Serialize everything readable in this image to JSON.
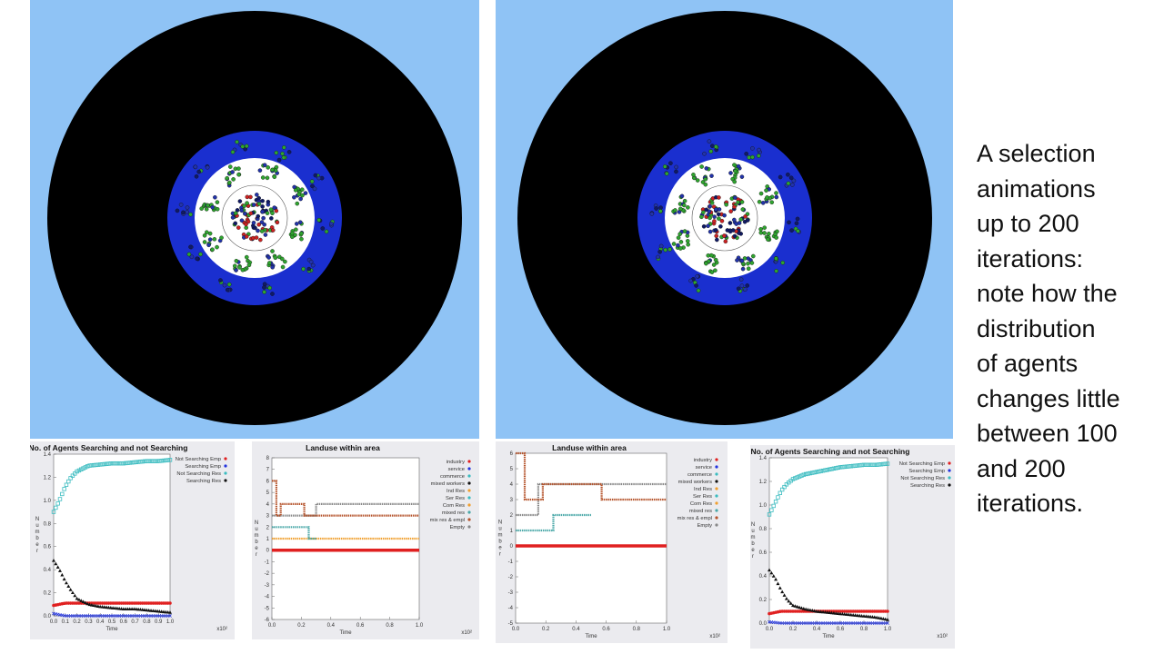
{
  "simulations": [
    {
      "name": "simulation-view-left"
    },
    {
      "name": "simulation-view-right"
    }
  ],
  "colors": {
    "sky": "#8fc3f5",
    "outer_disc": "#000000",
    "ring": "#1a2fcf",
    "core": "#ffffff",
    "agent_green": "#2fa52f",
    "agent_red": "#cc2222",
    "agent_blue": "#2233aa",
    "agent_dark_blue": "#101a66"
  },
  "caption": {
    "lines": [
      "A selection",
      "animations",
      "up to 200",
      "iterations:",
      "note how the",
      "distribution",
      "of agents",
      "changes little",
      "between 100",
      "and 200",
      "iterations."
    ]
  },
  "panels": {
    "agents_left": {
      "title": "No. of Agents Searching and not Searching",
      "xlabel": "Time",
      "ylabel": "Number",
      "x_scale": "x10²",
      "ticks_y": [
        "0.0",
        "0.2",
        "0.4",
        "0.6",
        "0.8",
        "1.0",
        "1.2",
        "1.4"
      ],
      "ticks_x": [
        "0.0",
        "0.1",
        "0.2",
        "0.3",
        "0.4",
        "0.5",
        "0.6",
        "0.7",
        "0.8",
        "0.9",
        "1.0"
      ],
      "legend": [
        "Not Searching Emp",
        "Searching Emp",
        "Not Searching Res",
        "Searching Res"
      ]
    },
    "landuse_left": {
      "title": "Landuse within area",
      "xlabel": "Time",
      "ylabel": "Number",
      "x_scale": "x10²",
      "ticks_y": [
        "-6",
        "-5",
        "-4",
        "-3",
        "-2",
        "-1",
        "0",
        "1",
        "2",
        "3",
        "4",
        "5",
        "6",
        "7",
        "8"
      ],
      "ticks_x": [
        "0.0",
        "0.2",
        "0.4",
        "0.6",
        "0.8",
        "1.0"
      ],
      "legend": [
        "industry",
        "service",
        "commerce",
        "mixed workers",
        "Ind Res",
        "Ser Res",
        "Com Res",
        "mixed res",
        "mix res & empl",
        "Empty"
      ]
    },
    "landuse_right": {
      "title": "Landuse within area",
      "xlabel": "Time",
      "ylabel": "Number",
      "x_scale": "x10²",
      "ticks_y": [
        "-5",
        "-4",
        "-3",
        "-2",
        "-1",
        "0",
        "1",
        "2",
        "3",
        "4",
        "5",
        "6"
      ],
      "ticks_x": [
        "0.0",
        "0.2",
        "0.4",
        "0.6",
        "0.8",
        "1.0"
      ],
      "legend": [
        "industry",
        "service",
        "commerce",
        "mixed workers",
        "Ind Res",
        "Ser Res",
        "Com Res",
        "mixed res",
        "mix res & empl",
        "Empty"
      ]
    },
    "agents_right": {
      "title": "No. of Agents Searching and not Searching",
      "xlabel": "Time",
      "ylabel": "Number",
      "x_scale": "x10²",
      "ticks_y": [
        "0.0",
        "0.2",
        "0.4",
        "0.6",
        "0.8",
        "1.0",
        "1.2",
        "1.4"
      ],
      "ticks_x": [
        "0.0",
        "0.2",
        "0.4",
        "0.6",
        "0.8",
        "1.0"
      ],
      "legend": [
        "Not Searching Emp",
        "Searching Emp",
        "Not Searching Res",
        "Searching Res"
      ]
    }
  },
  "chart_data": [
    {
      "type": "line",
      "title": "No. of Agents Searching and not Searching",
      "xlabel": "Time",
      "ylabel": "Number",
      "xlim": [
        0,
        1.0
      ],
      "ylim": [
        0,
        1.4
      ],
      "series": [
        {
          "name": "Not Searching Emp",
          "color": "#e02020",
          "marker": "circle",
          "x": [
            0.0,
            0.05,
            0.1,
            0.2,
            0.4,
            0.6,
            0.8,
            1.0
          ],
          "y": [
            0.09,
            0.1,
            0.11,
            0.11,
            0.11,
            0.11,
            0.11,
            0.11
          ]
        },
        {
          "name": "Searching Emp",
          "color": "#2233dd",
          "marker": "x",
          "x": [
            0.0,
            0.1,
            0.2,
            0.4,
            0.6,
            0.8,
            1.0
          ],
          "y": [
            0.02,
            0.0,
            0.0,
            0.0,
            0.0,
            0.0,
            0.0
          ]
        },
        {
          "name": "Not Searching Res",
          "color": "#3bbcc0",
          "marker": "square",
          "x": [
            0.0,
            0.05,
            0.1,
            0.15,
            0.2,
            0.3,
            0.4,
            0.5,
            0.6,
            0.7,
            0.8,
            0.9,
            1.0
          ],
          "y": [
            0.9,
            1.0,
            1.12,
            1.2,
            1.25,
            1.3,
            1.31,
            1.32,
            1.32,
            1.33,
            1.34,
            1.34,
            1.35
          ]
        },
        {
          "name": "Searching Res",
          "color": "#111111",
          "marker": "triangle",
          "x": [
            0.0,
            0.05,
            0.1,
            0.15,
            0.2,
            0.3,
            0.4,
            0.5,
            0.6,
            0.7,
            0.8,
            0.9,
            1.0
          ],
          "y": [
            0.48,
            0.4,
            0.3,
            0.22,
            0.15,
            0.1,
            0.08,
            0.07,
            0.06,
            0.06,
            0.05,
            0.04,
            0.03
          ]
        }
      ]
    },
    {
      "type": "line",
      "title": "Landuse within area",
      "xlabel": "Time",
      "ylabel": "Number",
      "xlim": [
        0,
        1.0
      ],
      "ylim": [
        -6,
        8
      ],
      "series": [
        {
          "name": "industry",
          "color": "#e02020",
          "x": [
            0.0,
            1.0
          ],
          "y": [
            0,
            0
          ]
        },
        {
          "name": "Empty",
          "color": "#888888",
          "x": [
            0.0,
            0.3,
            0.3,
            1.0
          ],
          "y": [
            3,
            3,
            4,
            4
          ]
        },
        {
          "name": "mix res & empl",
          "color": "#b5532b",
          "x": [
            0.0,
            0.03,
            0.03,
            0.06,
            0.06,
            0.22,
            0.22,
            1.0
          ],
          "y": [
            6,
            6,
            3,
            3,
            4,
            4,
            3,
            3
          ]
        },
        {
          "name": "Ind Res",
          "color": "#f0a030",
          "x": [
            0.0,
            0.3,
            0.3,
            1.0
          ],
          "y": [
            1,
            1,
            1,
            1
          ]
        },
        {
          "name": "mixed res",
          "color": "#4aa8a8",
          "x": [
            0.0,
            0.25,
            0.25,
            0.3
          ],
          "y": [
            2,
            2,
            1,
            1
          ]
        }
      ]
    },
    {
      "type": "line",
      "title": "Landuse within area",
      "xlabel": "Time",
      "ylabel": "Number",
      "xlim": [
        0,
        1.0
      ],
      "ylim": [
        -5,
        6
      ],
      "series": [
        {
          "name": "industry",
          "color": "#e02020",
          "x": [
            0.0,
            1.0
          ],
          "y": [
            0,
            0
          ]
        },
        {
          "name": "Empty",
          "color": "#888888",
          "x": [
            0.0,
            0.15,
            0.15,
            1.0
          ],
          "y": [
            2,
            2,
            4,
            4
          ]
        },
        {
          "name": "mix res & empl",
          "color": "#b5532b",
          "x": [
            0.0,
            0.06,
            0.06,
            0.18,
            0.18,
            0.57,
            0.57,
            1.0
          ],
          "y": [
            6,
            6,
            3,
            3,
            4,
            4,
            3,
            3
          ]
        },
        {
          "name": "mixed res",
          "color": "#4aa8a8",
          "x": [
            0.0,
            0.25,
            0.25,
            0.5
          ],
          "y": [
            1,
            1,
            2,
            2
          ]
        }
      ]
    },
    {
      "type": "line",
      "title": "No. of Agents Searching and not Searching",
      "xlabel": "Time",
      "ylabel": "Number",
      "xlim": [
        0,
        1.0
      ],
      "ylim": [
        0,
        1.4
      ],
      "series": [
        {
          "name": "Not Searching Emp",
          "color": "#e02020",
          "marker": "circle",
          "x": [
            0.0,
            0.05,
            0.1,
            0.3,
            0.5,
            0.7,
            1.0
          ],
          "y": [
            0.08,
            0.09,
            0.1,
            0.1,
            0.1,
            0.1,
            0.1
          ]
        },
        {
          "name": "Searching Emp",
          "color": "#2233dd",
          "marker": "x",
          "x": [
            0.0,
            0.1,
            0.3,
            0.5,
            0.7,
            1.0
          ],
          "y": [
            0.01,
            0.0,
            0.0,
            0.0,
            0.0,
            0.0
          ]
        },
        {
          "name": "Not Searching Res",
          "color": "#3bbcc0",
          "marker": "square",
          "x": [
            0.0,
            0.05,
            0.1,
            0.15,
            0.2,
            0.3,
            0.4,
            0.5,
            0.6,
            0.7,
            0.8,
            0.9,
            1.0
          ],
          "y": [
            0.92,
            1.02,
            1.12,
            1.18,
            1.22,
            1.26,
            1.28,
            1.3,
            1.32,
            1.33,
            1.34,
            1.34,
            1.35
          ]
        },
        {
          "name": "Searching Res",
          "color": "#111111",
          "marker": "triangle",
          "x": [
            0.0,
            0.05,
            0.1,
            0.15,
            0.2,
            0.3,
            0.4,
            0.5,
            0.6,
            0.7,
            0.8,
            0.9,
            1.0
          ],
          "y": [
            0.45,
            0.38,
            0.28,
            0.2,
            0.15,
            0.12,
            0.1,
            0.09,
            0.08,
            0.07,
            0.06,
            0.05,
            0.03
          ]
        }
      ]
    }
  ]
}
